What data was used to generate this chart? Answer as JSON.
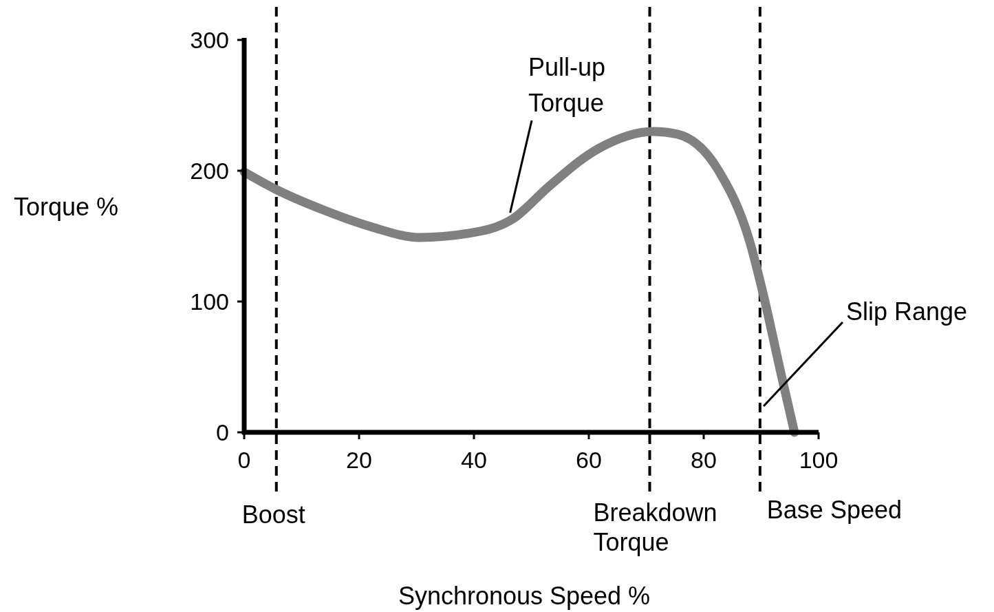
{
  "chart_data": {
    "type": "line",
    "xlabel": "Synchronous Speed %",
    "ylabel": "Torque %",
    "xlim": [
      0,
      100
    ],
    "ylim": [
      0,
      300
    ],
    "xticks": [
      0,
      20,
      40,
      60,
      80,
      100
    ],
    "yticks": [
      0,
      100,
      200,
      300
    ],
    "line_style": "solid",
    "series": [
      {
        "color": "#808080",
        "x": [
          0,
          5.4,
          13.8,
          22.2,
          30.5,
          38.9,
          46.7,
          53.3,
          61.7,
          71.3,
          75.4,
          82.6,
          88,
          90.4,
          93.4,
          95.8
        ],
        "values": [
          199,
          186,
          170,
          157,
          149,
          152,
          163,
          189,
          217,
          230,
          228,
          200,
          146,
          105,
          46,
          0
        ]
      }
    ],
    "ref_lines": [
      {
        "axis": "x",
        "value": 5.6,
        "label": "Boost",
        "color": "#000000",
        "line_style": "dashed"
      },
      {
        "axis": "x",
        "value": 70.6,
        "label": "Breakdown Torque",
        "color": "#000000",
        "line_style": "dashed"
      },
      {
        "axis": "x",
        "value": 89.8,
        "label": "Base Speed",
        "color": "#000000",
        "line_style": "dashed"
      }
    ],
    "annotations": [
      {
        "text": "Pull-up Torque",
        "x": 46.3,
        "y": 168
      },
      "Slip Range"
    ]
  }
}
